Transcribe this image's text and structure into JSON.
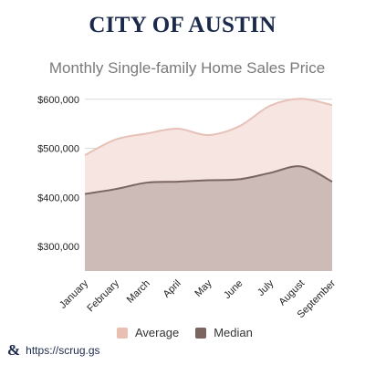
{
  "header": {
    "brand_title": "CITY OF AUSTIN"
  },
  "chart_data": {
    "type": "area",
    "title": "Monthly Single-family Home Sales Price",
    "categories": [
      "January",
      "February",
      "March",
      "April",
      "May",
      "June",
      "July",
      "August",
      "September"
    ],
    "series": [
      {
        "name": "Average",
        "values": [
          486000,
          518000,
          530000,
          540000,
          527000,
          545000,
          587000,
          601000,
          588000
        ],
        "color": "#f6e5e1",
        "line_color": "#e6c1b8"
      },
      {
        "name": "Median",
        "values": [
          407000,
          417000,
          430000,
          432000,
          435000,
          437000,
          450000,
          463000,
          432000
        ],
        "color": "#cdbbb7",
        "line_color": "#7a6560"
      }
    ],
    "ylim": [
      250000,
      620000
    ],
    "yticks": [
      300000,
      400000,
      500000,
      600000
    ],
    "ytick_labels": [
      "$300,000",
      "$400,000",
      "$500,000",
      "$600,000"
    ],
    "legend_position": "bottom",
    "legend_colors": {
      "Average": "#e9bfb2",
      "Median": "#7a6560"
    },
    "grid": true
  },
  "footer": {
    "icon": "ampersand-logo-icon",
    "link_text": "https://scrug.gs"
  }
}
